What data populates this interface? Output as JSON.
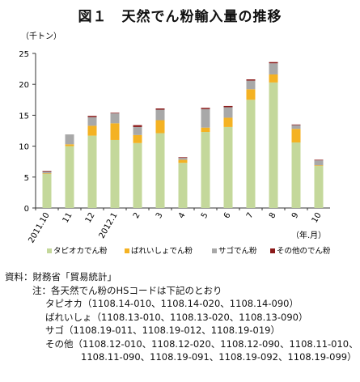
{
  "title": "図１　天然でん粉輸入量の推移",
  "chart_data": {
    "type": "bar",
    "stacked": true,
    "unit_label": "（千トン）",
    "year_month_label": "（年.月）",
    "categories": [
      "2011.10",
      "11",
      "12",
      "2012.1",
      "2",
      "3",
      "4",
      "5",
      "6",
      "7",
      "8",
      "9",
      "10"
    ],
    "ylim": [
      0,
      25
    ],
    "yticks": [
      0,
      5,
      10,
      15,
      20,
      25
    ],
    "grid": false,
    "legend_position": "bottom",
    "series": [
      {
        "name": "タピオカでん粉",
        "color": "#c4d89b",
        "values": [
          5.5,
          10.0,
          11.7,
          11.0,
          10.5,
          12.1,
          7.3,
          12.3,
          13.1,
          17.5,
          20.3,
          10.6,
          6.8
        ]
      },
      {
        "name": "ばれいしょでん粉",
        "color": "#f4b223",
        "values": [
          0.1,
          0.3,
          1.6,
          2.7,
          1.3,
          2.1,
          0.5,
          0.7,
          1.5,
          1.7,
          1.3,
          2.2,
          0.1
        ]
      },
      {
        "name": "サゴでん粉",
        "color": "#a8a8a8",
        "values": [
          0.3,
          1.6,
          1.4,
          1.6,
          1.3,
          1.7,
          0.3,
          3.0,
          1.7,
          1.4,
          1.8,
          0.6,
          0.8
        ]
      },
      {
        "name": "その他のでん粉",
        "color": "#8b1a1a",
        "values": [
          0.1,
          0.0,
          0.2,
          0.1,
          0.3,
          0.2,
          0.1,
          0.2,
          0.2,
          0.2,
          0.2,
          0.1,
          0.1
        ]
      }
    ]
  },
  "notes": {
    "source_head": "資料：",
    "source": "財務省「貿易統計」",
    "note_head": "注：",
    "note": "各天然でん粉のHSコードは下記のとおり",
    "tapioca": "タピオカ（1108.14-010、1108.14-020、1108.14-090）",
    "potato": "ばれいしょ（1108.13-010、1108.13-020、1108.13-090）",
    "sago": "サゴ（1108.19-011、1108.19-012、1108.19-019）",
    "other_1": "その他（1108.12-010、1108.12-020、1108.12-090、1108.11-010、",
    "other_2": "1108.11-090、1108.19-091、1108.19-092、1108.19-099）"
  }
}
